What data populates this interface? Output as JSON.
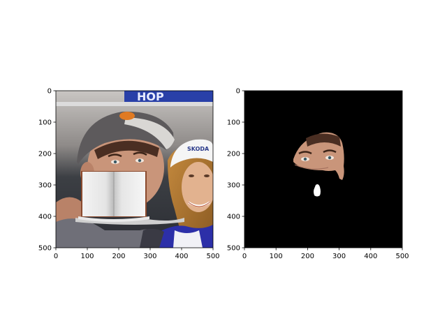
{
  "figure": {
    "background": "#ffffff",
    "panels": [
      {
        "name": "photo",
        "xticks": [
          "0",
          "100",
          "200",
          "300",
          "400",
          "500"
        ],
        "yticks": [
          "0",
          "100",
          "200",
          "300",
          "400",
          "500"
        ],
        "xlim": [
          0,
          500
        ],
        "ylim": [
          500,
          0
        ]
      },
      {
        "name": "mask",
        "xticks": [
          "0",
          "100",
          "200",
          "300",
          "400",
          "500"
        ],
        "yticks": [
          "0",
          "100",
          "200",
          "300",
          "400",
          "500"
        ],
        "xlim": [
          0,
          500
        ],
        "ylim": [
          500,
          0
        ]
      }
    ]
  },
  "photo": {
    "sign_text": "HOP",
    "cap_text": "SKODA"
  }
}
